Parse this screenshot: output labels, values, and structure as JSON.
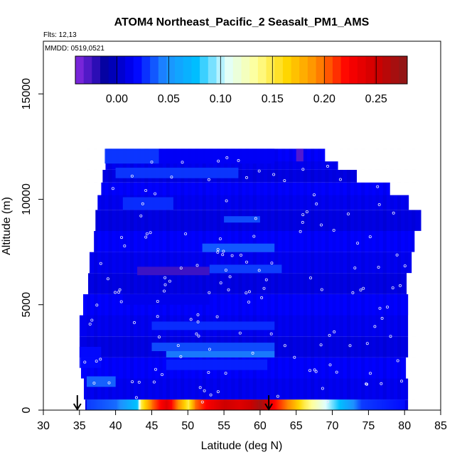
{
  "chart_data": {
    "type": "heatmap",
    "title": "ATOM4 Northeast_Pacific_2 Seasalt_PM1_AMS",
    "flights_text": "Flts: 12,13",
    "dates_text": "MMDD: 0519,0521",
    "xlabel": "Latitude (deg N)",
    "ylabel": "Altitude (m)",
    "xlim": [
      30,
      85
    ],
    "ylim": [
      0,
      17500
    ],
    "x_ticks": [
      "30",
      "35",
      "40",
      "45",
      "50",
      "55",
      "60",
      "65",
      "70",
      "75",
      "80",
      "85"
    ],
    "y_ticks": [
      "0",
      "5000",
      "10000",
      "15000"
    ],
    "colorbar": {
      "range": [
        -0.04,
        0.28
      ],
      "ticks": [
        "0.00",
        "0.05",
        "0.10",
        "0.15",
        "0.20",
        "0.25"
      ],
      "palette": [
        "#8a2be2",
        "#0000a0",
        "#0000ff",
        "#1e90ff",
        "#00bfff",
        "#e0ffff",
        "#ffff99",
        "#ffd700",
        "#ff8c00",
        "#ff0000",
        "#cc0000",
        "#8b1a1a"
      ]
    },
    "background_value": 0.01,
    "bands": [
      {
        "lat_min": 38.5,
        "lat_max": 46,
        "alt_min": 11700,
        "alt_max": 12400,
        "value": 0.03
      },
      {
        "lat_min": 46,
        "lat_max": 62,
        "alt_min": 11700,
        "alt_max": 12400,
        "value": 0.015
      },
      {
        "lat_min": 65,
        "lat_max": 66,
        "alt_min": 11800,
        "alt_max": 12400,
        "value": -0.03
      },
      {
        "lat_min": 40,
        "lat_max": 57,
        "alt_min": 11000,
        "alt_max": 11500,
        "value": 0.03
      },
      {
        "lat_min": 41,
        "lat_max": 48,
        "alt_min": 9500,
        "alt_max": 10100,
        "value": 0.028
      },
      {
        "lat_min": 55,
        "lat_max": 60,
        "alt_min": 8900,
        "alt_max": 9200,
        "value": 0.035
      },
      {
        "lat_min": 52,
        "lat_max": 62,
        "alt_min": 7500,
        "alt_max": 7900,
        "value": 0.038
      },
      {
        "lat_min": 43,
        "lat_max": 53,
        "alt_min": 6400,
        "alt_max": 6800,
        "value": -0.025
      },
      {
        "lat_min": 53,
        "lat_max": 63,
        "alt_min": 6500,
        "alt_max": 6900,
        "value": 0.032
      },
      {
        "lat_min": 41,
        "lat_max": 53,
        "alt_min": 5000,
        "alt_max": 5500,
        "value": 0.012
      },
      {
        "lat_min": 45,
        "lat_max": 62,
        "alt_min": 3800,
        "alt_max": 4200,
        "value": 0.028
      },
      {
        "lat_min": 45,
        "lat_max": 62,
        "alt_min": 2800,
        "alt_max": 3200,
        "value": 0.035
      },
      {
        "lat_min": 47,
        "lat_max": 62,
        "alt_min": 2500,
        "alt_max": 2800,
        "value": 0.045
      },
      {
        "lat_min": 47,
        "lat_max": 61,
        "alt_min": 1900,
        "alt_max": 2400,
        "value": 0.025
      },
      {
        "lat_min": 36,
        "lat_max": 40,
        "alt_min": 1100,
        "alt_max": 1600,
        "value": 0.04
      },
      {
        "lat_min": 35,
        "lat_max": 38,
        "alt_min": 2000,
        "alt_max": 3000,
        "value": 0.02
      }
    ],
    "surface_layer": {
      "alt_min": 0,
      "alt_max": 500,
      "points": [
        {
          "lat": 36,
          "value": 0.03
        },
        {
          "lat": 40,
          "value": 0.04
        },
        {
          "lat": 43,
          "value": 0.08
        },
        {
          "lat": 43.5,
          "value": 0.15
        },
        {
          "lat": 45,
          "value": 0.2
        },
        {
          "lat": 47,
          "value": 0.24
        },
        {
          "lat": 49,
          "value": 0.18
        },
        {
          "lat": 50,
          "value": 0.15
        },
        {
          "lat": 51,
          "value": 0.2
        },
        {
          "lat": 53,
          "value": 0.23
        },
        {
          "lat": 55,
          "value": 0.25
        },
        {
          "lat": 57,
          "value": 0.24
        },
        {
          "lat": 58.5,
          "value": 0.25
        },
        {
          "lat": 60,
          "value": 0.27
        },
        {
          "lat": 62,
          "value": 0.22
        },
        {
          "lat": 64,
          "value": 0.19
        },
        {
          "lat": 66,
          "value": 0.15
        },
        {
          "lat": 68,
          "value": 0.12
        },
        {
          "lat": 70,
          "value": 0.09
        },
        {
          "lat": 72,
          "value": 0.06
        },
        {
          "lat": 74,
          "value": 0.03
        },
        {
          "lat": 80,
          "value": 0.02
        }
      ]
    },
    "arrows_lat": [
      34.7,
      61.2
    ]
  }
}
